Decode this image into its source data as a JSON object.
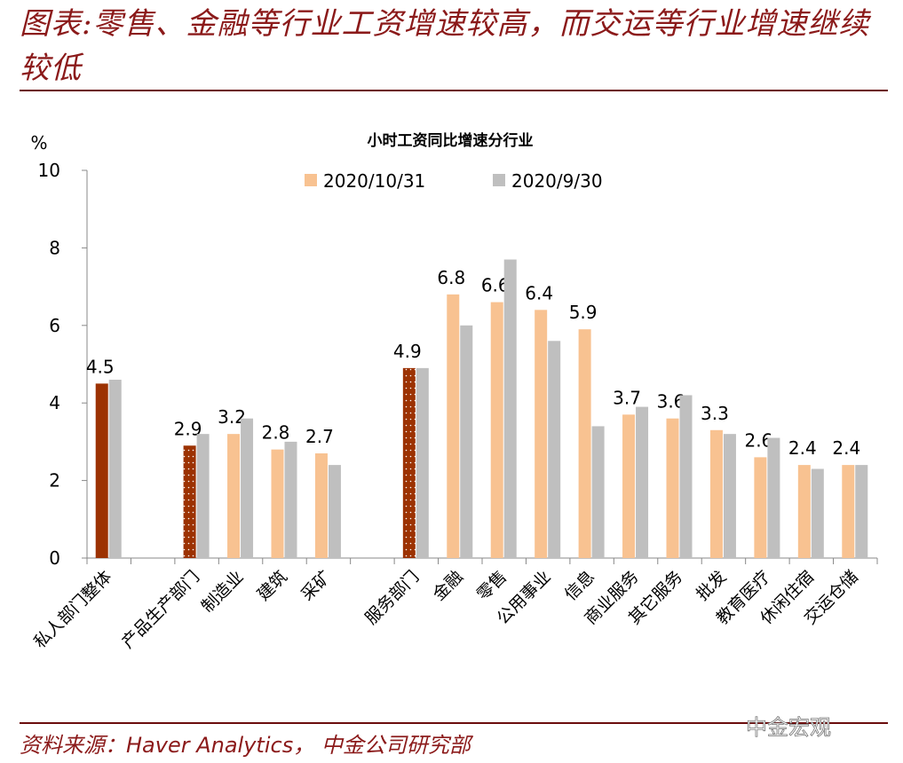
{
  "header": {
    "title": "图表:零售、金融等行业工资增速较高，而交运等行业增速继续较低"
  },
  "footer": {
    "source": "资料来源：Haver Analytics， 中金公司研究部",
    "watermark": "中金宏观"
  },
  "chart_data": {
    "type": "bar",
    "title": "小时工资同比增速分行业",
    "ylabel": "%",
    "ylim": [
      0,
      10
    ],
    "yticks": [
      0,
      2,
      4,
      6,
      8,
      10
    ],
    "grid": false,
    "legend_position": "top",
    "categories": [
      "私人部门整体",
      "",
      "产品生产部门",
      "制造业",
      "建筑",
      "采矿",
      "",
      "服务部门",
      "金融",
      "零售",
      "公用事业",
      "信息",
      "商业服务",
      "其它服务",
      "批发",
      "教育医疗",
      "休闲住宿",
      "交运仓储"
    ],
    "series": [
      {
        "name": "2020/10/31",
        "color": "#f8c291",
        "highlight_color": "#9c3202",
        "values": [
          4.5,
          null,
          2.9,
          3.2,
          2.8,
          2.7,
          null,
          4.9,
          6.8,
          6.6,
          6.4,
          5.9,
          3.7,
          3.6,
          3.3,
          2.6,
          2.4,
          2.4
        ],
        "data_labels": [
          "4.5",
          "",
          "2.9",
          "3.2",
          "2.8",
          "2.7",
          "",
          "4.9",
          "6.8",
          "6.6",
          "6.4",
          "5.9",
          "3.7",
          "3.6",
          "3.3",
          "2.6",
          "2.4",
          "2.4"
        ]
      },
      {
        "name": "2020/9/30",
        "color": "#bfbfbf",
        "values": [
          4.6,
          null,
          3.2,
          3.6,
          3.0,
          2.4,
          null,
          4.9,
          6.0,
          7.7,
          5.6,
          3.4,
          3.9,
          4.2,
          3.2,
          3.1,
          2.3,
          2.4
        ]
      }
    ]
  }
}
